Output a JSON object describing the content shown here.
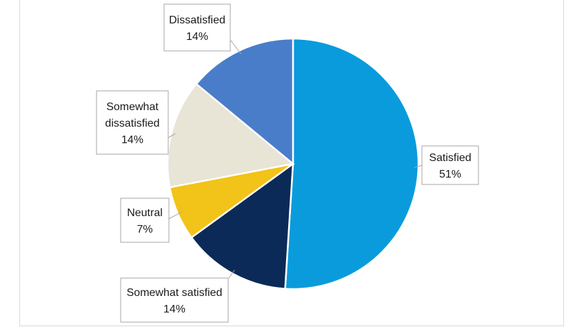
{
  "chart_data": {
    "type": "pie",
    "title": "",
    "slices": [
      {
        "label": "Satisfied",
        "value": 51,
        "value_label": "51%",
        "color": "#0a9bdc"
      },
      {
        "label": "Somewhat satisfied",
        "value": 14,
        "value_label": "14%",
        "color": "#0b2a57"
      },
      {
        "label": "Neutral",
        "value": 7,
        "value_label": "7%",
        "color": "#f2c318"
      },
      {
        "label": "Somewhat dissatisfied",
        "value": 14,
        "value_label": "14%",
        "color": "#e8e4d6"
      },
      {
        "label": "Dissatisfied",
        "value": 14,
        "value_label": "14%",
        "color": "#4a7dc9"
      }
    ],
    "legend": "none",
    "data_labels": "callouts"
  }
}
